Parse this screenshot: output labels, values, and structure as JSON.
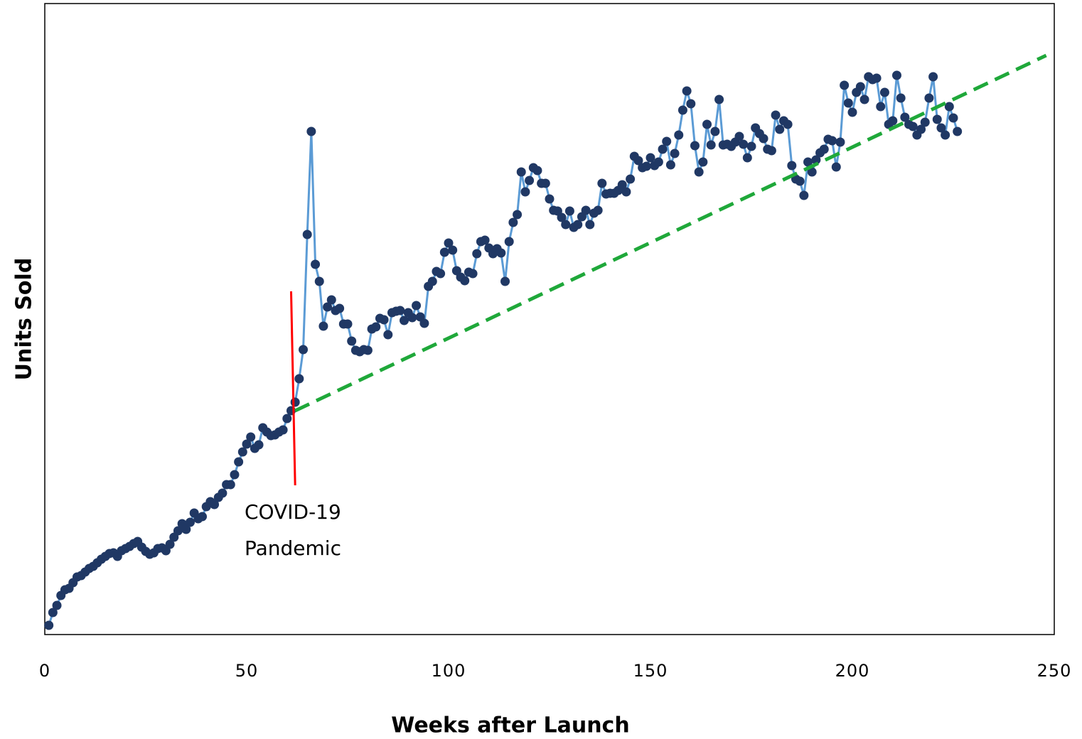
{
  "chart_data": {
    "type": "line",
    "x_label": "Weeks after Launch",
    "y_label": "Units Sold",
    "xlim": [
      0,
      250
    ],
    "xticks": [
      0,
      50,
      100,
      150,
      200,
      250
    ],
    "ylim": [
      0,
      888
    ],
    "line_color": "#5b9bd5",
    "marker_color": "#203864",
    "x": [
      1,
      2,
      3,
      4,
      5,
      6,
      7,
      8,
      9,
      10,
      11,
      12,
      13,
      14,
      15,
      16,
      17,
      18,
      19,
      20,
      21,
      22,
      23,
      24,
      25,
      26,
      27,
      28,
      29,
      30,
      31,
      32,
      33,
      34,
      35,
      36,
      37,
      38,
      39,
      40,
      41,
      42,
      43,
      44,
      45,
      46,
      47,
      48,
      49,
      50,
      51,
      52,
      53,
      54,
      55,
      56,
      57,
      58,
      59,
      60,
      61,
      62,
      63,
      64,
      65,
      66,
      67,
      68,
      69,
      70,
      71,
      72,
      73,
      74,
      75,
      76,
      77,
      78,
      79,
      80,
      81,
      82,
      83,
      84,
      85,
      86,
      87,
      88,
      89,
      90,
      91,
      92,
      93,
      94,
      95,
      96,
      97,
      98,
      99,
      100,
      101,
      102,
      103,
      104,
      105,
      106,
      107,
      108,
      109,
      110,
      111,
      112,
      113,
      114,
      115,
      116,
      117,
      118,
      119,
      120,
      121,
      122,
      123,
      124,
      125,
      126,
      127,
      128,
      129,
      130,
      131,
      132,
      133,
      134,
      135,
      136,
      137,
      138,
      139,
      140,
      141,
      142,
      143,
      144,
      145,
      146,
      147,
      148,
      149,
      150,
      151,
      152,
      153,
      154,
      155,
      156,
      157,
      158,
      159,
      160,
      161,
      162,
      163,
      164,
      165,
      166,
      167,
      168,
      169,
      170,
      171,
      172,
      173,
      174,
      175,
      176,
      177,
      178,
      179,
      180,
      181,
      182,
      183,
      184,
      185,
      186,
      187,
      188,
      189,
      190,
      191,
      192,
      193,
      194,
      195,
      196,
      197,
      198,
      199,
      200,
      201,
      202,
      203,
      204,
      205,
      206,
      207,
      208,
      209,
      210,
      211,
      212,
      213,
      214,
      215,
      216,
      217,
      218,
      219,
      220,
      221,
      222,
      223,
      224,
      225,
      226
    ],
    "values": [
      13,
      31,
      41,
      55,
      63,
      65,
      73,
      81,
      83,
      88,
      93,
      96,
      101,
      106,
      110,
      114,
      115,
      110,
      118,
      121,
      124,
      128,
      131,
      123,
      117,
      113,
      115,
      121,
      122,
      118,
      127,
      137,
      146,
      156,
      148,
      158,
      171,
      163,
      166,
      180,
      187,
      183,
      193,
      199,
      211,
      211,
      225,
      243,
      257,
      268,
      278,
      262,
      267,
      291,
      285,
      280,
      281,
      285,
      288,
      304,
      315,
      327,
      360,
      401,
      563,
      708,
      521,
      497,
      434,
      461,
      471,
      456,
      459,
      437,
      437,
      413,
      400,
      398,
      401,
      400,
      430,
      433,
      445,
      443,
      422,
      453,
      455,
      456,
      442,
      453,
      446,
      463,
      447,
      438,
      490,
      497,
      511,
      508,
      538,
      551,
      541,
      512,
      503,
      498,
      510,
      508,
      536,
      553,
      555,
      544,
      536,
      543,
      537,
      497,
      553,
      580,
      591,
      651,
      623,
      639,
      657,
      653,
      635,
      635,
      613,
      597,
      596,
      587,
      577,
      596,
      573,
      577,
      588,
      597,
      577,
      593,
      597,
      635,
      620,
      621,
      621,
      625,
      633,
      623,
      641,
      673,
      667,
      657,
      659,
      671,
      660,
      665,
      683,
      694,
      661,
      677,
      703,
      738,
      765,
      747,
      688,
      651,
      665,
      718,
      689,
      708,
      753,
      689,
      690,
      687,
      693,
      701,
      690,
      671,
      687,
      713,
      705,
      698,
      683,
      681,
      731,
      711,
      723,
      718,
      660,
      641,
      638,
      618,
      665,
      651,
      668,
      678,
      683,
      697,
      695,
      658,
      693,
      773,
      748,
      735,
      763,
      771,
      753,
      785,
      781,
      783,
      743,
      763,
      718,
      723,
      787,
      755,
      728,
      718,
      715,
      703,
      711,
      721,
      755,
      785,
      725,
      713,
      703,
      743,
      727,
      708
    ],
    "trend": {
      "x": [
        62,
        248
      ],
      "values": [
        315,
        815
      ],
      "color": "#1fa83a"
    },
    "event": {
      "x": [
        61,
        62
      ],
      "values": [
        483,
        210
      ],
      "color": "#ff0000",
      "label": [
        "COVID-19",
        "Pandemic"
      ]
    }
  }
}
